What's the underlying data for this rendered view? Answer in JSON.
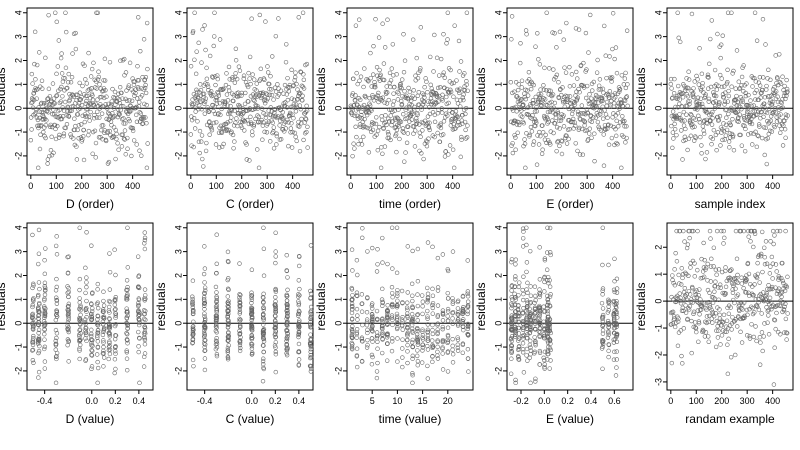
{
  "chart_data": [
    {
      "type": "scatter",
      "xlabel": "D (order)",
      "ylabel": "residuals",
      "xlim": [
        -15,
        480
      ],
      "ylim": [
        -2.8,
        4.2
      ],
      "xticks": [
        0,
        100,
        200,
        300,
        400
      ],
      "xtick_labels": [
        "0",
        "100",
        "200",
        "300",
        "400"
      ],
      "yticks": [
        -2,
        -1,
        0,
        1,
        2,
        3,
        4
      ],
      "ytick_labels": [
        "-2",
        "-1",
        "0",
        "1",
        "2",
        "3",
        "4"
      ],
      "hline": 0,
      "gen": {
        "mode": "index",
        "seed": 101,
        "n": 460,
        "ymin": -2.5,
        "ymax": 4.0,
        "sd": 0.9
      }
    },
    {
      "type": "scatter",
      "xlabel": "C (order)",
      "ylabel": "residuals",
      "xlim": [
        -15,
        480
      ],
      "ylim": [
        -2.8,
        4.2
      ],
      "xticks": [
        0,
        100,
        200,
        300,
        400
      ],
      "xtick_labels": [
        "0",
        "100",
        "200",
        "300",
        "400"
      ],
      "yticks": [
        -2,
        -1,
        0,
        1,
        2,
        3,
        4
      ],
      "ytick_labels": [
        "-2",
        "-1",
        "0",
        "1",
        "2",
        "3",
        "4"
      ],
      "hline": 0,
      "gen": {
        "mode": "index",
        "seed": 202,
        "n": 460,
        "ymin": -2.5,
        "ymax": 4.0,
        "sd": 0.9
      }
    },
    {
      "type": "scatter",
      "xlabel": "time (order)",
      "ylabel": "residuals",
      "xlim": [
        -15,
        480
      ],
      "ylim": [
        -2.8,
        4.2
      ],
      "xticks": [
        0,
        100,
        200,
        300,
        400
      ],
      "xtick_labels": [
        "0",
        "100",
        "200",
        "300",
        "400"
      ],
      "yticks": [
        -2,
        -1,
        0,
        1,
        2,
        3,
        4
      ],
      "ytick_labels": [
        "-2",
        "-1",
        "0",
        "1",
        "2",
        "3",
        "4"
      ],
      "hline": 0,
      "gen": {
        "mode": "index",
        "seed": 303,
        "n": 460,
        "ymin": -2.5,
        "ymax": 4.0,
        "sd": 0.9
      }
    },
    {
      "type": "scatter",
      "xlabel": "E (order)",
      "ylabel": "residuals",
      "xlim": [
        -15,
        480
      ],
      "ylim": [
        -2.8,
        4.2
      ],
      "xticks": [
        0,
        100,
        200,
        300,
        400
      ],
      "xtick_labels": [
        "0",
        "100",
        "200",
        "300",
        "400"
      ],
      "yticks": [
        -2,
        -1,
        0,
        1,
        2,
        3,
        4
      ],
      "ytick_labels": [
        "-2",
        "-1",
        "0",
        "1",
        "2",
        "3",
        "4"
      ],
      "hline": 0,
      "gen": {
        "mode": "index",
        "seed": 404,
        "n": 460,
        "ymin": -2.5,
        "ymax": 4.0,
        "sd": 0.9
      }
    },
    {
      "type": "scatter",
      "xlabel": "sample index",
      "ylabel": "residuals",
      "xlim": [
        -15,
        480
      ],
      "ylim": [
        -2.8,
        4.2
      ],
      "xticks": [
        0,
        100,
        200,
        300,
        400
      ],
      "xtick_labels": [
        "0",
        "100",
        "200",
        "300",
        "400"
      ],
      "yticks": [
        -2,
        -1,
        0,
        1,
        2,
        3,
        4
      ],
      "ytick_labels": [
        "-2",
        "-1",
        "0",
        "1",
        "2",
        "3",
        "4"
      ],
      "hline": 0,
      "gen": {
        "mode": "index",
        "seed": 505,
        "n": 460,
        "ymin": -2.5,
        "ymax": 4.0,
        "sd": 0.9
      }
    },
    {
      "type": "scatter",
      "xlabel": "D (value)",
      "ylabel": "residuals",
      "xlim": [
        -0.55,
        0.52
      ],
      "ylim": [
        -2.8,
        4.2
      ],
      "xticks": [
        -0.4,
        0.0,
        0.2,
        0.4
      ],
      "xtick_labels": [
        "-0.4",
        "0.0",
        "0.2",
        "0.4"
      ],
      "yticks": [
        -2,
        -1,
        0,
        1,
        2,
        3,
        4
      ],
      "ytick_labels": [
        "-2",
        "-1",
        "0",
        "1",
        "2",
        "3",
        "4"
      ],
      "hline": 0,
      "gen": {
        "mode": "levels",
        "seed": 606,
        "n": 460,
        "ymin": -2.5,
        "ymax": 4.0,
        "sd": 0.9,
        "levels": [
          -0.5,
          -0.45,
          -0.4,
          -0.3,
          -0.2,
          -0.1,
          -0.05,
          0.0,
          0.05,
          0.1,
          0.15,
          0.2,
          0.3,
          0.4,
          0.45
        ],
        "jitter": 0.006
      }
    },
    {
      "type": "scatter",
      "xlabel": "C (value)",
      "ylabel": "residuals",
      "xlim": [
        -0.55,
        0.52
      ],
      "ylim": [
        -2.8,
        4.2
      ],
      "xticks": [
        -0.4,
        0.0,
        0.2,
        0.4
      ],
      "xtick_labels": [
        "-0.4",
        "0.0",
        "0.2",
        "0.4"
      ],
      "yticks": [
        -2,
        -1,
        0,
        1,
        2,
        3,
        4
      ],
      "ytick_labels": [
        "-2",
        "-1",
        "0",
        "1",
        "2",
        "3",
        "4"
      ],
      "hline": 0,
      "gen": {
        "mode": "levels",
        "seed": 707,
        "n": 460,
        "ymin": -2.5,
        "ymax": 4.0,
        "sd": 0.9,
        "levels": [
          -0.5,
          -0.4,
          -0.3,
          -0.2,
          -0.1,
          0.0,
          0.1,
          0.2,
          0.3,
          0.4,
          0.5
        ],
        "jitter": 0.005
      }
    },
    {
      "type": "scatter",
      "xlabel": "time (value)",
      "ylabel": "residuals",
      "xlim": [
        0,
        25
      ],
      "ylim": [
        -2.8,
        4.2
      ],
      "xticks": [
        5,
        10,
        15,
        20
      ],
      "xtick_labels": [
        "5",
        "10",
        "15",
        "20"
      ],
      "yticks": [
        -2,
        -1,
        0,
        1,
        2,
        3,
        4
      ],
      "ytick_labels": [
        "-2",
        "-1",
        "0",
        "1",
        "2",
        "3",
        "4"
      ],
      "hline": 0,
      "gen": {
        "mode": "levels",
        "seed": 808,
        "n": 460,
        "ymin": -2.5,
        "ymax": 4.0,
        "sd": 0.9,
        "levels": [
          1,
          2,
          3,
          4,
          5,
          6,
          7,
          8,
          9,
          10,
          11,
          12,
          13,
          14,
          15,
          16,
          17,
          18,
          19,
          20,
          21,
          22,
          23,
          24
        ],
        "jitter": 0.08
      }
    },
    {
      "type": "scatter",
      "xlabel": "E (value)",
      "ylabel": "residuals",
      "xlim": [
        -0.32,
        0.76
      ],
      "ylim": [
        -2.8,
        4.2
      ],
      "xticks": [
        -0.2,
        0.0,
        0.2,
        0.4,
        0.6
      ],
      "xtick_labels": [
        "-0.2",
        "0.0",
        "0.2",
        "0.4",
        "0.6"
      ],
      "yticks": [
        -2,
        -1,
        0,
        1,
        2,
        3,
        4
      ],
      "ytick_labels": [
        "-2",
        "-1",
        "0",
        "1",
        "2",
        "3",
        "4"
      ],
      "hline": 0,
      "gen": {
        "mode": "levels",
        "seed": 909,
        "n": 460,
        "ymin": -2.5,
        "ymax": 4.0,
        "sd": 0.9,
        "levels": [
          -0.28,
          -0.25,
          -0.22,
          -0.18,
          -0.15,
          -0.12,
          -0.08,
          -0.04,
          0.0,
          0.03,
          0.05,
          0.5,
          0.55,
          0.6,
          0.62
        ],
        "jitter": 0.006
      }
    },
    {
      "type": "scatter",
      "xlabel": "randam example",
      "ylabel": "residuals",
      "xlim": [
        -15,
        480
      ],
      "ylim": [
        -3.3,
        2.9
      ],
      "xticks": [
        0,
        100,
        200,
        300,
        400
      ],
      "xtick_labels": [
        "0",
        "100",
        "200",
        "300",
        "400"
      ],
      "yticks": [
        -3,
        -2,
        -1,
        0,
        1,
        2
      ],
      "ytick_labels": [
        "-3",
        "-2",
        "-1",
        "0",
        "1",
        "2"
      ],
      "hline": 0,
      "gen": {
        "mode": "index",
        "seed": 111,
        "n": 460,
        "ymin": -3.1,
        "ymax": 2.6,
        "sd": 0.95
      }
    }
  ],
  "colors": {
    "points": "#666666",
    "axes": "#000000",
    "background": "#ffffff"
  }
}
